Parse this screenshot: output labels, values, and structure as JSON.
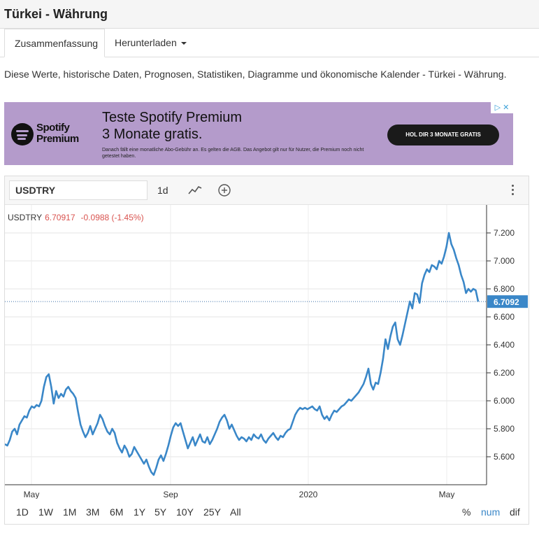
{
  "page": {
    "title": "Türkei - Währung"
  },
  "tabs": [
    {
      "label": "Zusammenfassung"
    },
    {
      "label": "Herunterladen"
    }
  ],
  "description": "Diese Werte, historische Daten, Prognosen, Statistiken, Diagramme und ökonomische Kalender - Türkei - Währung.",
  "ad": {
    "brand_line1": "Spotify",
    "brand_line2": "Premium",
    "headline1": "Teste Spotify Premium",
    "headline2": "3 Monate gratis.",
    "fineprint": "Danach fällt eine monatliche Abo-Gebühr an. Es gelten die AGB. Das Angebot gilt nur für Nutzer, die Premium noch nicht getestet haben.",
    "cta": "HOL DIR 3 MONATE GRATIS",
    "corner": "▷ ✕",
    "background": "#b49bcb"
  },
  "toolbar": {
    "symbol": "USDTRY",
    "interval": "1d",
    "icons": [
      "line-chart-icon",
      "add-circle-icon",
      "more-vertical-icon"
    ]
  },
  "legend": {
    "symbol": "USDTRY",
    "value": "6.70917",
    "change": "-0.0988 (-1.45%)"
  },
  "chart_data": {
    "type": "line",
    "series": [
      {
        "name": "USDTRY",
        "color": "#3a87c8"
      }
    ],
    "y_axis_labels": [
      "7.200",
      "7.000",
      "6.800",
      "6.600",
      "6.400",
      "6.200",
      "6.000",
      "5.800",
      "5.600"
    ],
    "ylim": [
      5.4,
      7.4
    ],
    "x_axis_labels": [
      "May",
      "Sep",
      "2020",
      "May"
    ],
    "last_value_label": "6.7092",
    "last_value": 6.7092,
    "points": [
      [
        0,
        5.69
      ],
      [
        2,
        5.68
      ],
      [
        4,
        5.72
      ],
      [
        6,
        5.78
      ],
      [
        8,
        5.8
      ],
      [
        10,
        5.76
      ],
      [
        12,
        5.83
      ],
      [
        14,
        5.86
      ],
      [
        16,
        5.89
      ],
      [
        18,
        5.88
      ],
      [
        20,
        5.93
      ],
      [
        22,
        5.96
      ],
      [
        24,
        5.95
      ],
      [
        26,
        5.97
      ],
      [
        28,
        5.96
      ],
      [
        30,
        6.0
      ],
      [
        32,
        6.1
      ],
      [
        34,
        6.17
      ],
      [
        36,
        6.19
      ],
      [
        38,
        6.1
      ],
      [
        40,
        5.98
      ],
      [
        42,
        6.07
      ],
      [
        44,
        6.02
      ],
      [
        46,
        6.05
      ],
      [
        48,
        6.03
      ],
      [
        50,
        6.08
      ],
      [
        52,
        6.1
      ],
      [
        54,
        6.07
      ],
      [
        56,
        6.05
      ],
      [
        58,
        6.02
      ],
      [
        60,
        5.92
      ],
      [
        62,
        5.83
      ],
      [
        64,
        5.78
      ],
      [
        66,
        5.74
      ],
      [
        68,
        5.77
      ],
      [
        70,
        5.82
      ],
      [
        72,
        5.76
      ],
      [
        74,
        5.8
      ],
      [
        76,
        5.84
      ],
      [
        78,
        5.9
      ],
      [
        80,
        5.87
      ],
      [
        82,
        5.82
      ],
      [
        84,
        5.78
      ],
      [
        86,
        5.76
      ],
      [
        88,
        5.8
      ],
      [
        90,
        5.77
      ],
      [
        92,
        5.7
      ],
      [
        94,
        5.66
      ],
      [
        96,
        5.63
      ],
      [
        98,
        5.68
      ],
      [
        100,
        5.65
      ],
      [
        102,
        5.6
      ],
      [
        104,
        5.62
      ],
      [
        106,
        5.67
      ],
      [
        108,
        5.64
      ],
      [
        110,
        5.61
      ],
      [
        112,
        5.58
      ],
      [
        114,
        5.55
      ],
      [
        116,
        5.58
      ],
      [
        118,
        5.53
      ],
      [
        120,
        5.49
      ],
      [
        122,
        5.47
      ],
      [
        124,
        5.52
      ],
      [
        126,
        5.58
      ],
      [
        128,
        5.61
      ],
      [
        130,
        5.57
      ],
      [
        132,
        5.62
      ],
      [
        134,
        5.68
      ],
      [
        136,
        5.75
      ],
      [
        138,
        5.81
      ],
      [
        140,
        5.84
      ],
      [
        142,
        5.82
      ],
      [
        144,
        5.84
      ],
      [
        146,
        5.78
      ],
      [
        148,
        5.72
      ],
      [
        150,
        5.66
      ],
      [
        152,
        5.7
      ],
      [
        154,
        5.74
      ],
      [
        156,
        5.68
      ],
      [
        158,
        5.72
      ],
      [
        160,
        5.76
      ],
      [
        162,
        5.71
      ],
      [
        164,
        5.7
      ],
      [
        166,
        5.74
      ],
      [
        168,
        5.69
      ],
      [
        170,
        5.72
      ],
      [
        172,
        5.76
      ],
      [
        174,
        5.8
      ],
      [
        176,
        5.85
      ],
      [
        178,
        5.88
      ],
      [
        180,
        5.9
      ],
      [
        182,
        5.86
      ],
      [
        184,
        5.8
      ],
      [
        186,
        5.83
      ],
      [
        188,
        5.79
      ],
      [
        190,
        5.75
      ],
      [
        192,
        5.72
      ],
      [
        194,
        5.74
      ],
      [
        196,
        5.73
      ],
      [
        198,
        5.71
      ],
      [
        200,
        5.74
      ],
      [
        202,
        5.72
      ],
      [
        204,
        5.76
      ],
      [
        206,
        5.74
      ],
      [
        208,
        5.73
      ],
      [
        210,
        5.76
      ],
      [
        212,
        5.72
      ],
      [
        214,
        5.7
      ],
      [
        216,
        5.73
      ],
      [
        218,
        5.75
      ],
      [
        220,
        5.77
      ],
      [
        222,
        5.74
      ],
      [
        224,
        5.72
      ],
      [
        226,
        5.75
      ],
      [
        228,
        5.74
      ],
      [
        230,
        5.77
      ],
      [
        232,
        5.79
      ],
      [
        234,
        5.8
      ],
      [
        236,
        5.85
      ],
      [
        238,
        5.9
      ],
      [
        240,
        5.93
      ],
      [
        242,
        5.95
      ],
      [
        244,
        5.94
      ],
      [
        246,
        5.95
      ],
      [
        248,
        5.94
      ],
      [
        250,
        5.95
      ],
      [
        252,
        5.96
      ],
      [
        254,
        5.94
      ],
      [
        256,
        5.93
      ],
      [
        258,
        5.96
      ],
      [
        260,
        5.9
      ],
      [
        262,
        5.87
      ],
      [
        264,
        5.89
      ],
      [
        266,
        5.86
      ],
      [
        268,
        5.9
      ],
      [
        270,
        5.93
      ],
      [
        272,
        5.92
      ],
      [
        274,
        5.94
      ],
      [
        276,
        5.96
      ],
      [
        278,
        5.97
      ],
      [
        280,
        5.99
      ],
      [
        282,
        6.01
      ],
      [
        284,
        6.0
      ],
      [
        286,
        6.02
      ],
      [
        288,
        6.04
      ],
      [
        290,
        6.06
      ],
      [
        292,
        6.09
      ],
      [
        294,
        6.12
      ],
      [
        296,
        6.17
      ],
      [
        298,
        6.23
      ],
      [
        300,
        6.12
      ],
      [
        302,
        6.08
      ],
      [
        304,
        6.13
      ],
      [
        306,
        6.12
      ],
      [
        308,
        6.2
      ],
      [
        310,
        6.3
      ],
      [
        312,
        6.44
      ],
      [
        314,
        6.37
      ],
      [
        316,
        6.46
      ],
      [
        318,
        6.53
      ],
      [
        320,
        6.56
      ],
      [
        322,
        6.44
      ],
      [
        324,
        6.4
      ],
      [
        326,
        6.47
      ],
      [
        328,
        6.55
      ],
      [
        330,
        6.63
      ],
      [
        332,
        6.71
      ],
      [
        334,
        6.66
      ],
      [
        336,
        6.77
      ],
      [
        338,
        6.76
      ],
      [
        340,
        6.7
      ],
      [
        342,
        6.84
      ],
      [
        344,
        6.9
      ],
      [
        346,
        6.94
      ],
      [
        348,
        6.92
      ],
      [
        350,
        6.97
      ],
      [
        352,
        6.96
      ],
      [
        354,
        6.94
      ],
      [
        356,
        7.0
      ],
      [
        358,
        6.98
      ],
      [
        360,
        7.03
      ],
      [
        362,
        7.1
      ],
      [
        364,
        7.2
      ],
      [
        366,
        7.12
      ],
      [
        368,
        7.08
      ],
      [
        370,
        7.02
      ],
      [
        372,
        6.97
      ],
      [
        374,
        6.9
      ],
      [
        376,
        6.85
      ],
      [
        378,
        6.77
      ],
      [
        380,
        6.8
      ],
      [
        382,
        6.78
      ],
      [
        384,
        6.8
      ],
      [
        386,
        6.79
      ],
      [
        388,
        6.7092
      ]
    ]
  },
  "ranges": [
    "1D",
    "1W",
    "1M",
    "3M",
    "6M",
    "1Y",
    "5Y",
    "10Y",
    "25Y",
    "All"
  ],
  "modes": [
    "%",
    "num",
    "dif"
  ]
}
